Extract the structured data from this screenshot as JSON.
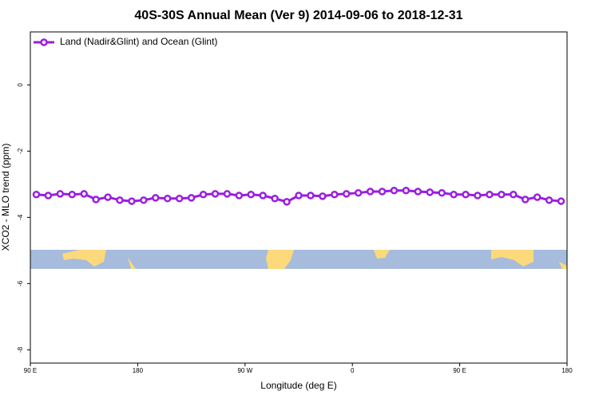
{
  "chart_data": {
    "type": "line",
    "title": "40S-30S Annual Mean (Ver 9)   2014-09-06 to 2018-12-31",
    "x_label": "Longitude (deg E)",
    "y_label": "XCO2 - MLO trend (ppm)",
    "x": [
      95,
      105,
      115,
      125,
      135,
      145,
      155,
      165,
      175,
      185,
      195,
      205,
      215,
      225,
      235,
      245,
      255,
      265,
      275,
      285,
      295,
      305,
      315,
      325,
      335,
      345,
      355,
      365,
      375,
      385,
      395,
      405,
      415,
      425,
      435,
      445,
      455,
      465,
      475,
      485,
      495,
      505,
      515,
      525,
      535
    ],
    "series": [
      {
        "name": "Land (Nadir&Glint) and Ocean (Glint)",
        "color": "#9a1ee0",
        "values": [
          -3.31,
          -3.34,
          -3.29,
          -3.31,
          -3.29,
          -3.46,
          -3.39,
          -3.48,
          -3.51,
          -3.48,
          -3.41,
          -3.43,
          -3.43,
          -3.41,
          -3.31,
          -3.29,
          -3.29,
          -3.34,
          -3.31,
          -3.34,
          -3.43,
          -3.53,
          -3.34,
          -3.34,
          -3.36,
          -3.31,
          -3.29,
          -3.26,
          -3.22,
          -3.22,
          -3.19,
          -3.19,
          -3.22,
          -3.24,
          -3.26,
          -3.31,
          -3.31,
          -3.34,
          -3.31,
          -3.31,
          -3.31,
          -3.46,
          -3.39,
          -3.48,
          -3.51
        ]
      }
    ],
    "xlim": [
      90,
      540
    ],
    "xticks": [
      {
        "value": 90,
        "label": "90 E"
      },
      180,
      {
        "value": 270,
        "label": "90 W"
      },
      {
        "value": 360,
        "label": "0"
      },
      {
        "value": 450,
        "label": "90 E"
      },
      {
        "value": 540,
        "label": "180"
      }
    ],
    "ylim": [
      -8.4,
      1.6
    ],
    "yticks": [
      0,
      -2,
      -4,
      -6,
      -8
    ],
    "legend": "top-left"
  }
}
